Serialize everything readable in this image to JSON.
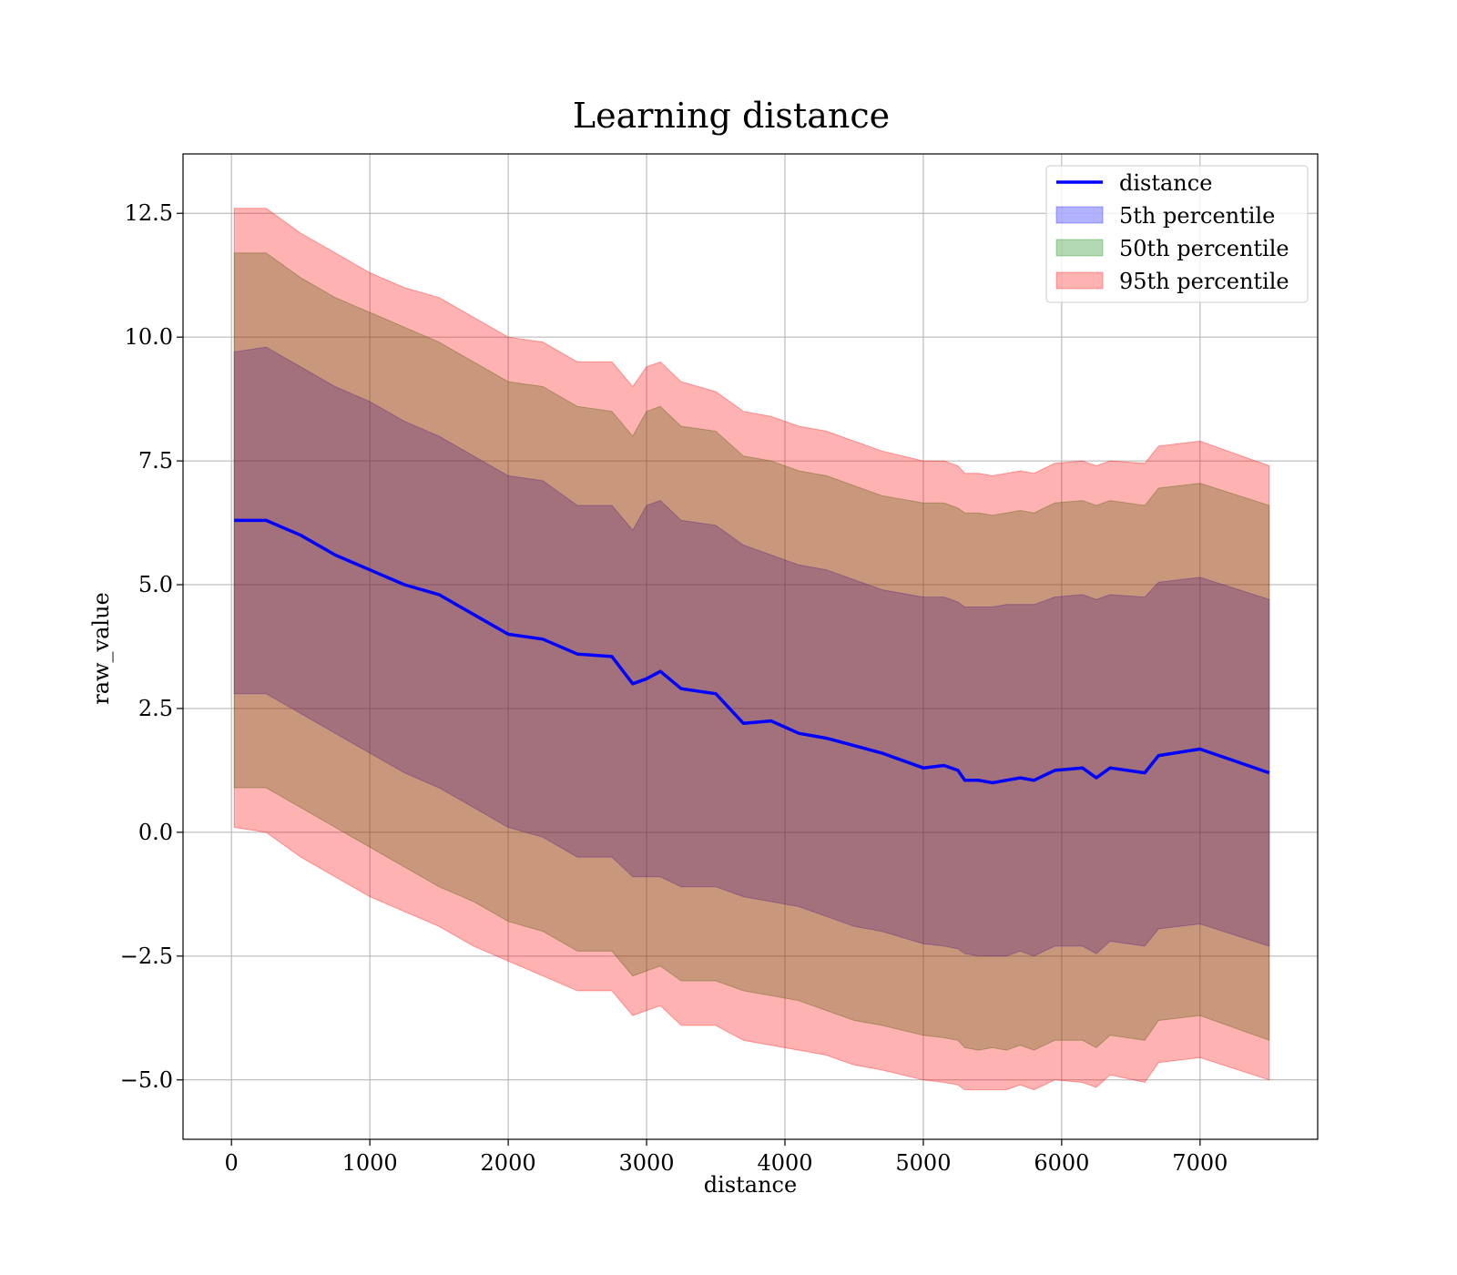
{
  "chart_data": {
    "type": "area",
    "title": "Learning distance",
    "xlabel": "distance",
    "ylabel": "raw_value",
    "xlim": [
      -350,
      7850
    ],
    "ylim": [
      -6.2,
      13.7
    ],
    "x_ticks": [
      0,
      1000,
      2000,
      3000,
      4000,
      5000,
      6000,
      7000
    ],
    "x_tick_labels": [
      "0",
      "1000",
      "2000",
      "3000",
      "4000",
      "5000",
      "6000",
      "7000"
    ],
    "y_ticks": [
      -5.0,
      -2.5,
      0.0,
      2.5,
      5.0,
      7.5,
      10.0,
      12.5
    ],
    "y_tick_labels": [
      "−5.0",
      "−2.5",
      "0.0",
      "2.5",
      "5.0",
      "7.5",
      "10.0",
      "12.5"
    ],
    "grid": true,
    "legend_position": "top-right",
    "x": [
      20,
      250,
      500,
      750,
      1000,
      1250,
      1500,
      1750,
      2000,
      2250,
      2500,
      2750,
      2900,
      3000,
      3100,
      3250,
      3500,
      3700,
      3900,
      4100,
      4300,
      4500,
      4700,
      5000,
      5150,
      5250,
      5300,
      5400,
      5500,
      5600,
      5700,
      5800,
      5950,
      6150,
      6250,
      6350,
      6600,
      6700,
      7000,
      7500
    ],
    "series": [
      {
        "name": "distance",
        "kind": "line",
        "color": "#0000ff",
        "values": [
          6.3,
          6.3,
          6.0,
          5.6,
          5.3,
          5.0,
          4.8,
          4.4,
          4.0,
          3.9,
          3.6,
          3.55,
          3.0,
          3.1,
          3.25,
          2.9,
          2.8,
          2.2,
          2.25,
          2.0,
          1.9,
          1.75,
          1.6,
          1.3,
          1.35,
          1.25,
          1.05,
          1.05,
          1.0,
          1.05,
          1.1,
          1.05,
          1.25,
          1.3,
          1.1,
          1.3,
          1.2,
          1.55,
          1.68,
          1.2
        ]
      },
      {
        "name": "5th percentile",
        "kind": "band",
        "color": "#0000ff",
        "lower": [
          2.8,
          2.8,
          2.4,
          2.0,
          1.6,
          1.2,
          0.9,
          0.5,
          0.1,
          -0.1,
          -0.5,
          -0.5,
          -0.9,
          -0.9,
          -0.9,
          -1.1,
          -1.1,
          -1.3,
          -1.4,
          -1.5,
          -1.7,
          -1.9,
          -2.0,
          -2.25,
          -2.3,
          -2.35,
          -2.45,
          -2.5,
          -2.5,
          -2.5,
          -2.4,
          -2.5,
          -2.3,
          -2.3,
          -2.45,
          -2.2,
          -2.3,
          -1.95,
          -1.85,
          -2.3
        ],
        "upper": [
          9.7,
          9.8,
          9.4,
          9.0,
          8.7,
          8.3,
          8.0,
          7.6,
          7.2,
          7.1,
          6.6,
          6.6,
          6.1,
          6.6,
          6.7,
          6.3,
          6.2,
          5.8,
          5.6,
          5.4,
          5.3,
          5.1,
          4.9,
          4.75,
          4.75,
          4.65,
          4.55,
          4.55,
          4.55,
          4.6,
          4.6,
          4.6,
          4.75,
          4.8,
          4.7,
          4.8,
          4.75,
          5.05,
          5.15,
          4.7
        ]
      },
      {
        "name": "50th percentile",
        "kind": "band",
        "color": "#008000",
        "lower": [
          0.9,
          0.9,
          0.5,
          0.1,
          -0.3,
          -0.7,
          -1.1,
          -1.4,
          -1.8,
          -2.0,
          -2.4,
          -2.4,
          -2.9,
          -2.8,
          -2.7,
          -3.0,
          -3.0,
          -3.2,
          -3.3,
          -3.4,
          -3.6,
          -3.8,
          -3.9,
          -4.1,
          -4.15,
          -4.2,
          -4.35,
          -4.4,
          -4.35,
          -4.4,
          -4.3,
          -4.4,
          -4.2,
          -4.2,
          -4.35,
          -4.1,
          -4.2,
          -3.8,
          -3.7,
          -4.2
        ],
        "upper": [
          11.7,
          11.7,
          11.2,
          10.8,
          10.5,
          10.2,
          9.9,
          9.5,
          9.1,
          9.0,
          8.6,
          8.5,
          8.0,
          8.5,
          8.6,
          8.2,
          8.1,
          7.6,
          7.5,
          7.3,
          7.2,
          7.0,
          6.8,
          6.65,
          6.65,
          6.55,
          6.45,
          6.45,
          6.4,
          6.45,
          6.5,
          6.45,
          6.65,
          6.7,
          6.6,
          6.7,
          6.6,
          6.95,
          7.05,
          6.6
        ]
      },
      {
        "name": "95th percentile",
        "kind": "band",
        "color": "#ff0000",
        "lower": [
          0.1,
          0.0,
          -0.5,
          -0.9,
          -1.3,
          -1.6,
          -1.9,
          -2.3,
          -2.6,
          -2.9,
          -3.2,
          -3.2,
          -3.7,
          -3.6,
          -3.5,
          -3.9,
          -3.9,
          -4.2,
          -4.3,
          -4.4,
          -4.5,
          -4.7,
          -4.8,
          -5.0,
          -5.05,
          -5.1,
          -5.2,
          -5.2,
          -5.2,
          -5.2,
          -5.1,
          -5.2,
          -5.0,
          -5.05,
          -5.15,
          -4.9,
          -5.05,
          -4.65,
          -4.55,
          -5.0
        ],
        "upper": [
          12.6,
          12.6,
          12.1,
          11.7,
          11.3,
          11.0,
          10.8,
          10.4,
          10.0,
          9.9,
          9.5,
          9.5,
          9.0,
          9.4,
          9.5,
          9.1,
          8.9,
          8.5,
          8.4,
          8.2,
          8.1,
          7.9,
          7.7,
          7.5,
          7.5,
          7.4,
          7.25,
          7.25,
          7.2,
          7.25,
          7.3,
          7.25,
          7.45,
          7.5,
          7.4,
          7.5,
          7.45,
          7.8,
          7.9,
          7.4
        ]
      }
    ]
  }
}
